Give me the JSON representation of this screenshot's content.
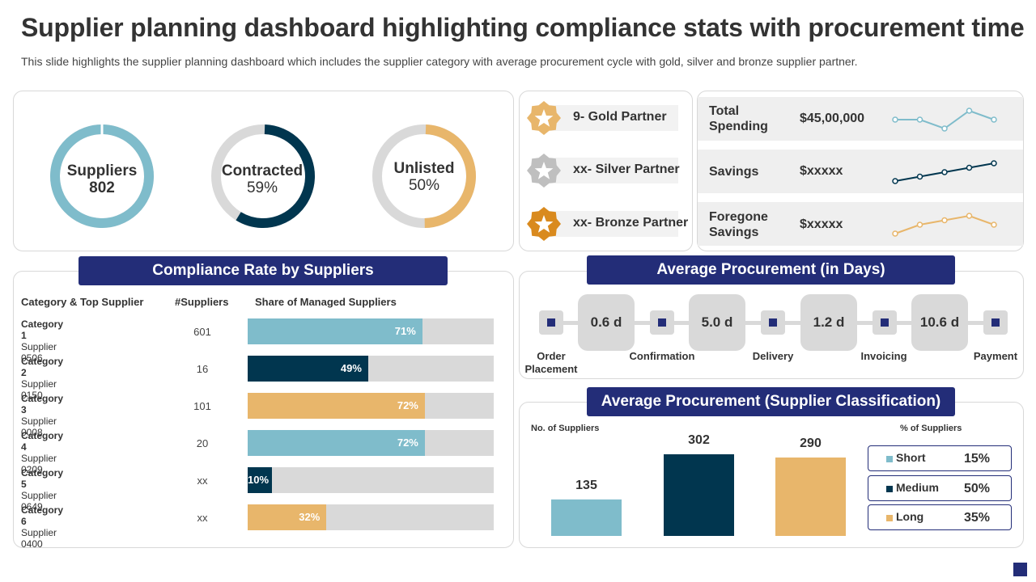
{
  "title": "Supplier planning dashboard highlighting compliance stats with procurement time",
  "subtitle": "This slide highlights the supplier planning dashboard which includes the supplier category with average procurement cycle with gold, silver and bronze supplier partner.",
  "colors": {
    "navy": "#232d78",
    "dark_teal": "#01364f",
    "light_blue": "#7fbccb",
    "gold": "#e8b66b",
    "grey": "#d9d9d9"
  },
  "rings": [
    {
      "label": "Suppliers",
      "value": "802",
      "fraction": 1.0,
      "color": "#7fbccb"
    },
    {
      "label": "Contracted",
      "value": "59%",
      "fraction": 0.59,
      "color": "#01364f"
    },
    {
      "label": "Unlisted",
      "value": "50%",
      "fraction": 0.5,
      "color": "#e8b66b"
    }
  ],
  "partners": [
    {
      "label": "9- Gold Partner",
      "icon": "gold-star-badge-icon",
      "color": "#e8b66b"
    },
    {
      "label": "xx- Silver Partner",
      "icon": "silver-star-badge-icon",
      "color": "#bfbfbf"
    },
    {
      "label": "xx- Bronze Partner",
      "icon": "bronze-star-badge-icon",
      "color": "#d98a1e"
    }
  ],
  "metrics": [
    {
      "label": "Total Spending",
      "value": "$45,00,000",
      "trend": [
        3,
        3,
        1,
        5,
        3
      ],
      "color": "#7fbccb"
    },
    {
      "label": "Savings",
      "value": "$xxxxx",
      "trend": [
        1,
        2,
        3,
        4,
        5
      ],
      "color": "#01364f"
    },
    {
      "label": "Foregone Savings",
      "value": "$xxxxx",
      "trend": [
        1,
        3,
        4,
        5,
        3
      ],
      "color": "#e8b66b"
    }
  ],
  "compliance": {
    "header": "Compliance Rate by Suppliers",
    "col_category": "Category & Top Supplier",
    "col_suppliers": "#Suppliers",
    "col_share": "Share of Managed Suppliers",
    "rows": [
      {
        "category": "Category 1",
        "supplier": "Supplier 0506",
        "count": "601",
        "pct": 71,
        "pct_label": "71%",
        "color": "#7fbccb"
      },
      {
        "category": "Category 2",
        "supplier": "Supplier 0150",
        "count": "16",
        "pct": 49,
        "pct_label": "49%",
        "color": "#01364f"
      },
      {
        "category": "Category 3",
        "supplier": "Supplier 0008",
        "count": "101",
        "pct": 72,
        "pct_label": "72%",
        "color": "#e8b66b"
      },
      {
        "category": "Category 4",
        "supplier": "Supplier 0209",
        "count": "20",
        "pct": 72,
        "pct_label": "72%",
        "color": "#7fbccb"
      },
      {
        "category": "Category 5",
        "supplier": "Supplier 0649",
        "count": "xx",
        "pct": 10,
        "pct_label": "10%",
        "color": "#01364f"
      },
      {
        "category": "Category 6",
        "supplier": "Supplier 0400",
        "count": "xx",
        "pct": 32,
        "pct_label": "32%",
        "color": "#e8b66b"
      }
    ]
  },
  "avg_procurement_days": {
    "header": "Average Procurement (in Days)",
    "steps": [
      "Order Placement",
      "Confirmation",
      "Delivery",
      "Invoicing",
      "Payment"
    ],
    "durations": [
      "0.6 d",
      "5.0 d",
      "1.2 d",
      "10.6 d"
    ]
  },
  "chart_data": {
    "type": "bar",
    "title": "Average Procurement (Supplier Classification)",
    "ylabel": "No. of Suppliers",
    "categories": [
      "Short",
      "Medium",
      "Long"
    ],
    "values": [
      135,
      302,
      290
    ],
    "ylim": [
      0,
      302
    ],
    "colors": [
      "#7fbccb",
      "#01364f",
      "#e8b66b"
    ],
    "legend_title": "% of Suppliers",
    "legend": [
      {
        "name": "Short",
        "pct": "15%"
      },
      {
        "name": "Medium",
        "pct": "50%"
      },
      {
        "name": "Long",
        "pct": "35%"
      }
    ]
  }
}
